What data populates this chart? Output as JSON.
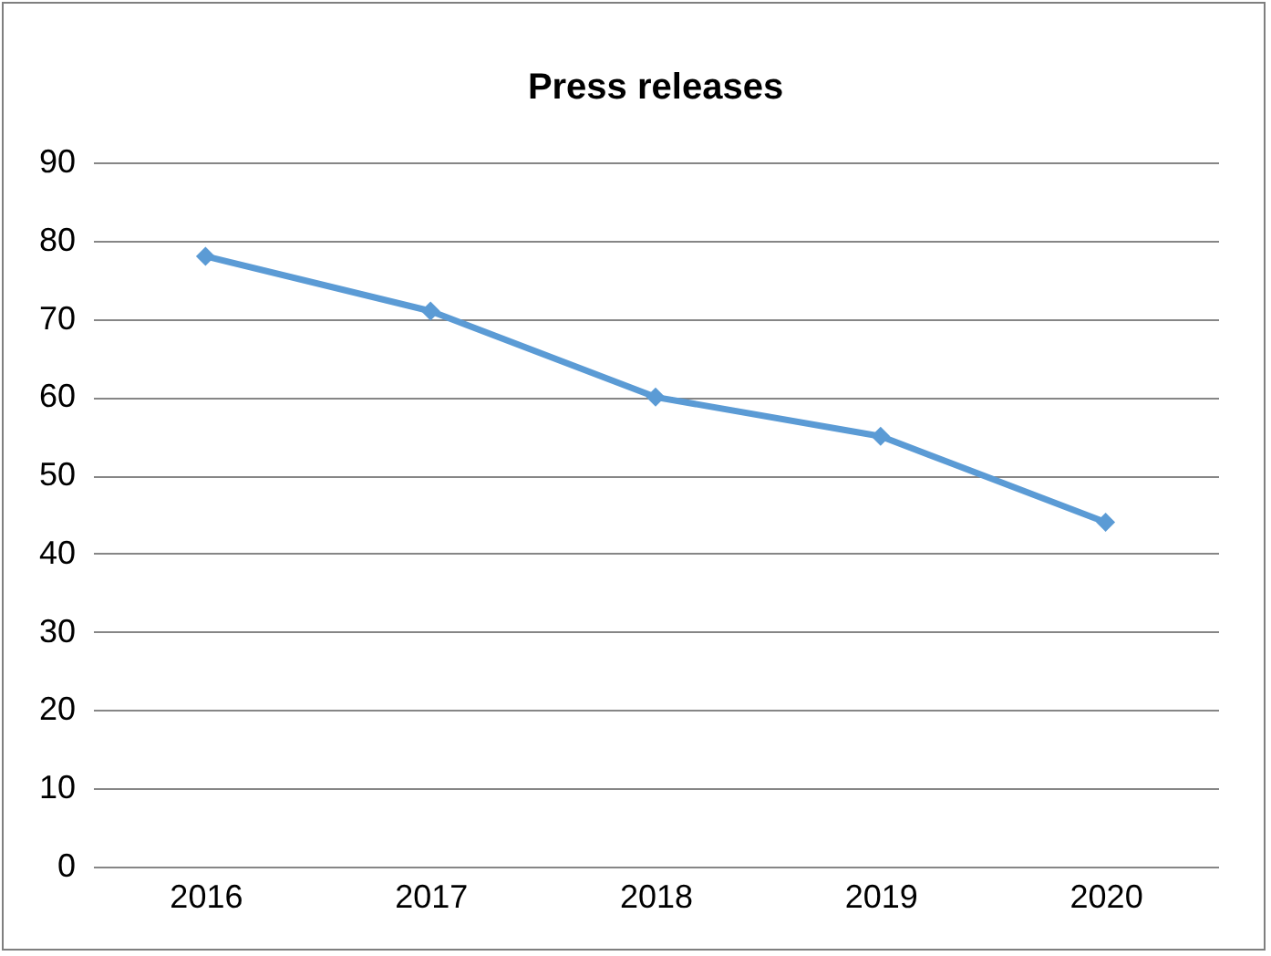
{
  "chart_data": {
    "type": "line",
    "title": "Press releases",
    "categories": [
      "2016",
      "2017",
      "2018",
      "2019",
      "2020"
    ],
    "series": [
      {
        "color": "#5b9bd5",
        "values": [
          78,
          71,
          60,
          55,
          44
        ]
      }
    ],
    "ylim": [
      0,
      90
    ],
    "yticks": [
      0,
      10,
      20,
      30,
      40,
      50,
      60,
      70,
      80,
      90
    ],
    "grid": "y",
    "marker": "diamond",
    "line_style": "solid"
  }
}
